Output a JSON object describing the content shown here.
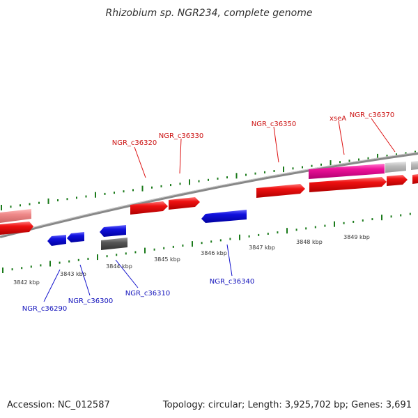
{
  "title": "Rhizobium sp. NGR234, complete genome",
  "footer": {
    "accession": "Accession: NC_012587",
    "summary": "Topology: circular; Length: 3,925,702 bp; Genes: 3,691"
  },
  "colors": {
    "forward_gene": "#ee1111",
    "forward_label": "#cc1111",
    "reverse_gene": "#1111dd",
    "reverse_label": "#1111bb",
    "rna_gene": "#ee1199",
    "pseudo_gene": "#bbbbbb",
    "other_reverse": "#555555",
    "faded_forward": "#ee8888",
    "backbone": "#888888",
    "tick": "#1a7a1a"
  },
  "scale_labels": [
    "3842 kbp",
    "3843 kbp",
    "3844 kbp",
    "3845 kbp",
    "3846 kbp",
    "3847 kbp",
    "3848 kbp",
    "3849 kbp"
  ],
  "forward_labels": [
    "NGR_c36320",
    "NGR_c36330",
    "NGR_c36350",
    "xseA",
    "NGR_c36370"
  ],
  "reverse_labels": [
    "NGR_c36290",
    "NGR_c36300",
    "NGR_c36310",
    "NGR_c36340"
  ]
}
